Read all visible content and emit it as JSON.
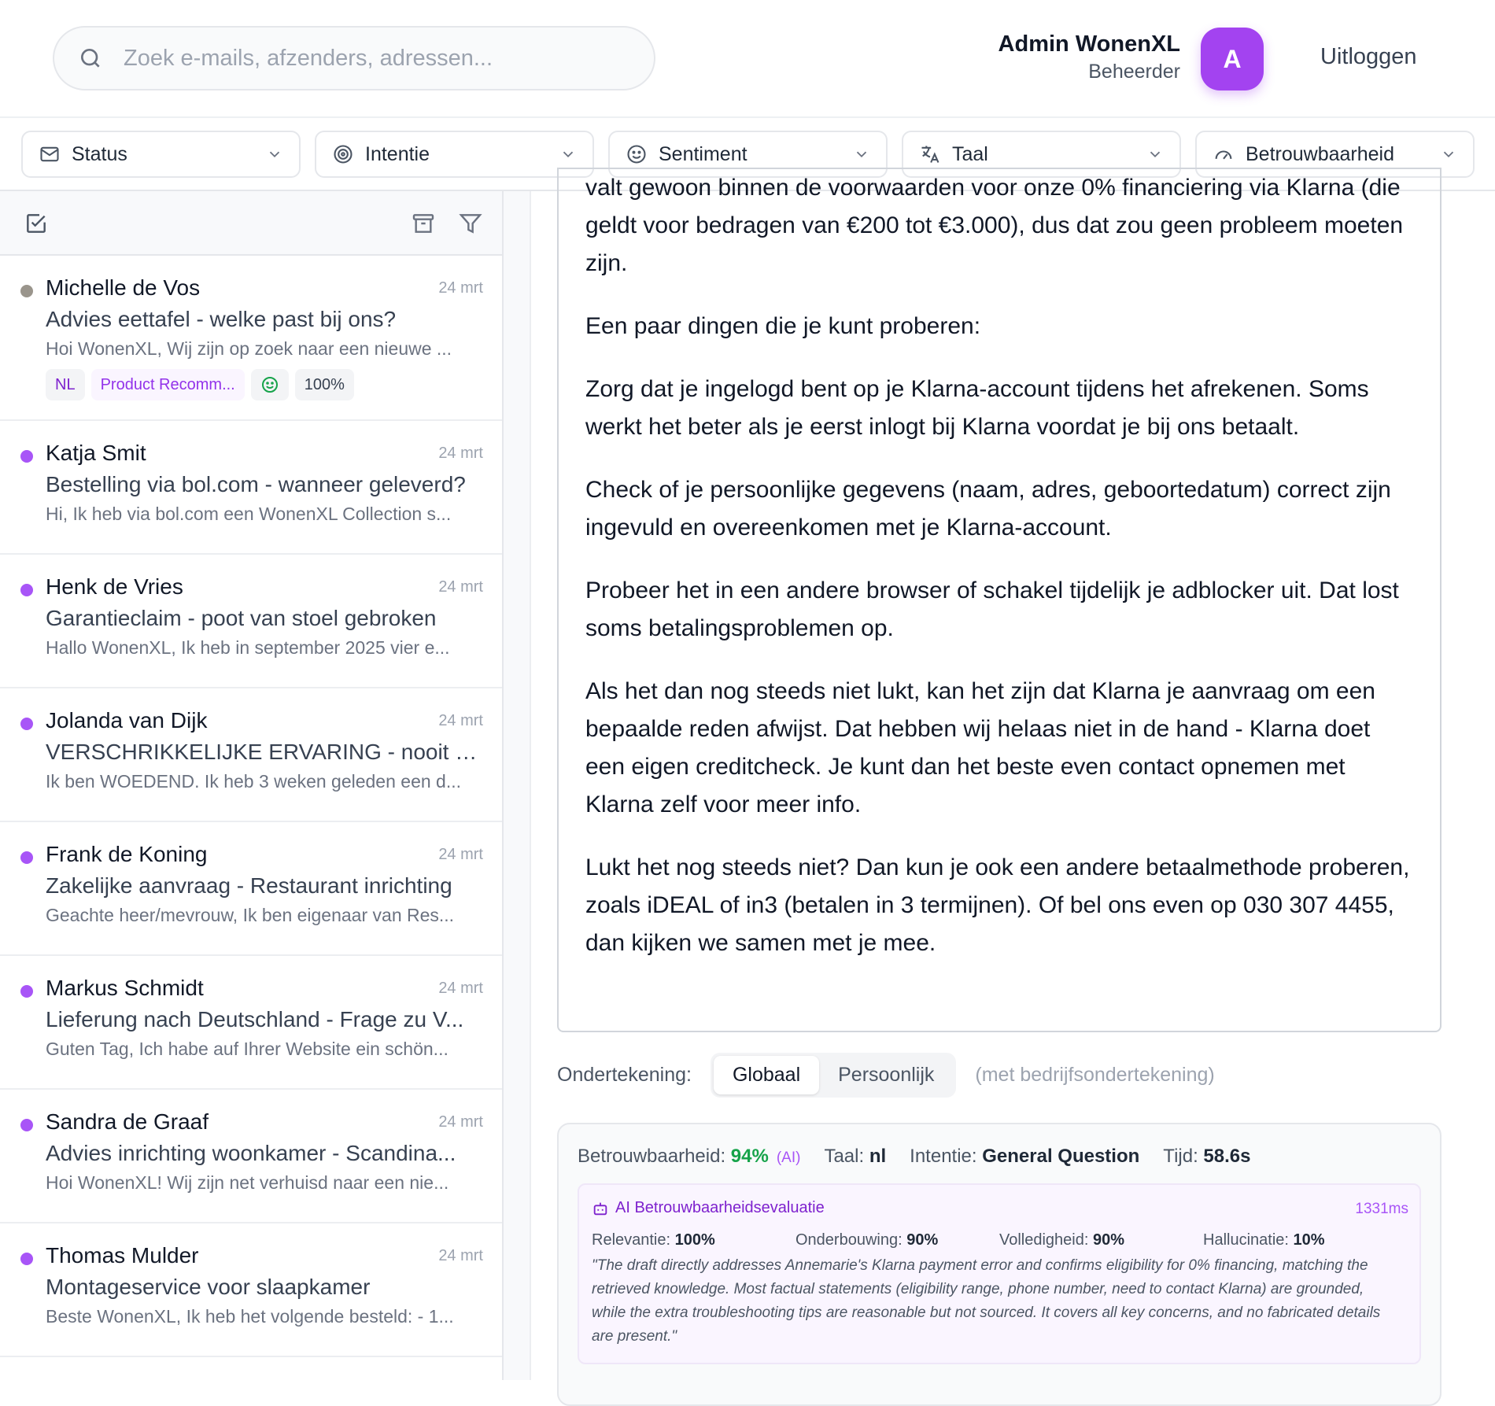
{
  "header": {
    "search_placeholder": "Zoek e-mails, afzenders, adressen...",
    "user_name": "Admin WonenXL",
    "user_role": "Beheerder",
    "avatar_initial": "A",
    "logout": "Uitloggen"
  },
  "filters": [
    "Status",
    "Intentie",
    "Sentiment",
    "Taal",
    "Betrouwbaarheid"
  ],
  "emails": [
    {
      "name": "Michelle de Vos",
      "date": "24 mrt",
      "subject": "Advies eettafel - welke past bij ons?",
      "preview": "Hoi WonenXL, Wij zijn op zoek naar een nieuwe ...",
      "tags": {
        "lang": "NL",
        "intent": "Product Recomm...",
        "sentiment": "positive",
        "confidence": "100%"
      },
      "read": true
    },
    {
      "name": "Katja Smit",
      "date": "24 mrt",
      "subject": "Bestelling via bol.com - wanneer geleverd?",
      "preview": "Hi, Ik heb via bol.com een WonenXL Collection s..."
    },
    {
      "name": "Henk de Vries",
      "date": "24 mrt",
      "subject": "Garantieclaim - poot van stoel gebroken",
      "preview": "Hallo WonenXL, Ik heb in september 2025 vier e..."
    },
    {
      "name": "Jolanda van Dijk",
      "date": "24 mrt",
      "subject": "VERSCHRIKKELIJKE ERVARING - nooit m...",
      "preview": "Ik ben WOEDEND. Ik heb 3 weken geleden een d..."
    },
    {
      "name": "Frank de Koning",
      "date": "24 mrt",
      "subject": "Zakelijke aanvraag - Restaurant inrichting",
      "preview": "Geachte heer/mevrouw, Ik ben eigenaar van Res..."
    },
    {
      "name": "Markus Schmidt",
      "date": "24 mrt",
      "subject": "Lieferung nach Deutschland - Frage zu V...",
      "preview": "Guten Tag, Ich habe auf Ihrer Website ein schön..."
    },
    {
      "name": "Sandra de Graaf",
      "date": "24 mrt",
      "subject": "Advies inrichting woonkamer - Scandina...",
      "preview": "Hoi WonenXL! Wij zijn net verhuisd naar een nie..."
    },
    {
      "name": "Thomas Mulder",
      "date": "24 mrt",
      "subject": "Montageservice voor slaapkamer",
      "preview": "Beste WonenXL, Ik heb het volgende besteld: - 1..."
    }
  ],
  "draft": {
    "paragraphs": [
      "valt gewoon binnen de voorwaarden voor onze 0% financiering via Klarna (die geldt voor bedragen van €200 tot €3.000), dus dat zou geen probleem moeten zijn.",
      "Een paar dingen die je kunt proberen:",
      "Zorg dat je ingelogd bent op je Klarna-account tijdens het afrekenen. Soms werkt het beter als je eerst inlogt bij Klarna voordat je bij ons betaalt.",
      "Check of je persoonlijke gegevens (naam, adres, geboortedatum) correct zijn ingevuld en overeenkomen met je Klarna-account.",
      "Probeer het in een andere browser of schakel tijdelijk je adblocker uit. Dat lost soms betalingsproblemen op.",
      "Als het dan nog steeds niet lukt, kan het zijn dat Klarna je aanvraag om een bepaalde reden afwijst. Dat hebben wij helaas niet in de hand - Klarna doet een eigen creditcheck. Je kunt dan het beste even contact opnemen met Klarna zelf voor meer info.",
      "Lukt het nog steeds niet? Dan kun je ook een andere betaalmethode proberen, zoals iDEAL of in3 (betalen in 3 termijnen). Of bel ons even op 030 307 4455, dan kijken we samen met je mee."
    ]
  },
  "signature": {
    "label": "Ondertekening:",
    "options": [
      "Globaal",
      "Persoonlijk"
    ],
    "selected": "Globaal",
    "note": "(met bedrijfsondertekening)"
  },
  "meta": {
    "conf_label": "Betrouwbaarheid:",
    "conf": "94%",
    "conf_src": "(AI)",
    "lang_label": "Taal:",
    "lang": "nl",
    "intent_label": "Intentie:",
    "intent": "General Question",
    "time_label": "Tijd:",
    "time": "58.6s"
  },
  "evaluation": {
    "title": "AI Betrouwbaarheidsevaluatie",
    "ms": "1331ms",
    "scores": [
      {
        "label": "Relevantie:",
        "value": "100%"
      },
      {
        "label": "Onderbouwing:",
        "value": "90%"
      },
      {
        "label": "Volledigheid:",
        "value": "90%"
      },
      {
        "label": "Hallucinatie:",
        "value": "10%"
      }
    ],
    "quote": "\"The draft directly addresses Annemarie's Klarna payment error and confirms eligibility for 0% financing, matching the retrieved knowledge. Most factual statements (eligibility range, phone number, need to contact Klarna) are grounded, while the extra troubleshooting tips are reasonable but not sourced. It covers all key concerns, and no fabricated details are present.\""
  },
  "colors": {
    "accent": "#a855f7",
    "success": "#16a34a"
  }
}
